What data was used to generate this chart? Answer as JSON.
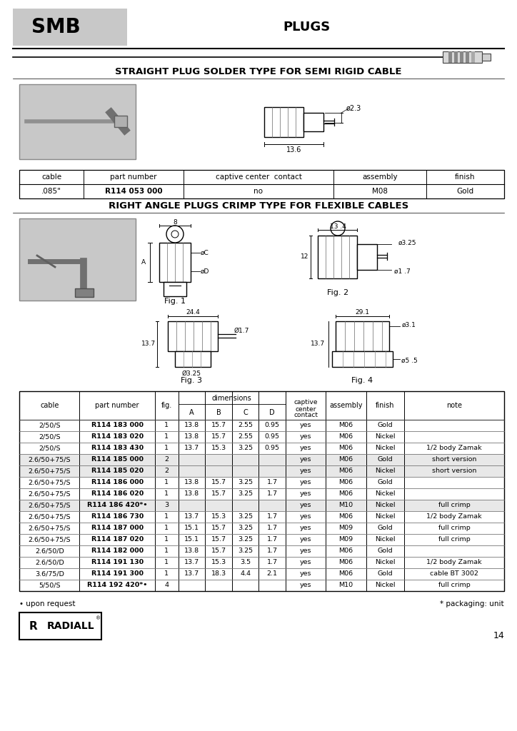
{
  "page_bg": "#ffffff",
  "header_box_color": "#c8c8c8",
  "header_smb_text": "SMB",
  "header_plugs_text": "PLUGS",
  "section1_title": "STRAIGHT PLUG SOLDER TYPE FOR SEMI RIGID CABLE",
  "section2_title": "RIGHT ANGLE PLUGS CRIMP TYPE FOR FLEXIBLE CABLES",
  "table1_headers": [
    "cable",
    "part number",
    "captive center  contact",
    "assembly",
    "finish"
  ],
  "table1_row": [
    ".085\"",
    "R114 053 000",
    "no",
    "M08",
    "Gold"
  ],
  "table2_headers": [
    "cable",
    "part number",
    "fig.",
    "A",
    "B",
    "C",
    "D",
    "captive\ncenter\ncontact",
    "assembly",
    "finish",
    "note"
  ],
  "table2_rows": [
    [
      "2/50/S",
      "R114 183 000",
      "1",
      "13.8",
      "15.7",
      "2.55",
      "0.95",
      "yes",
      "M06",
      "Gold",
      ""
    ],
    [
      "2/50/S",
      "R114 183 020",
      "1",
      "13.8",
      "15.7",
      "2.55",
      "0.95",
      "yes",
      "M06",
      "Nickel",
      ""
    ],
    [
      "2/50/S",
      "R114 183 430",
      "1",
      "13.7",
      "15.3",
      "3.25",
      "0.95",
      "yes",
      "M06",
      "Nickel",
      "1/2 body Zamak"
    ],
    [
      "2.6/50+75/S",
      "R114 185 000",
      "2",
      "",
      "",
      "",
      "",
      "yes",
      "M06",
      "Gold",
      "short version"
    ],
    [
      "2.6/50+75/S",
      "R114 185 020",
      "2",
      "",
      "",
      "",
      "",
      "yes",
      "M06",
      "Nickel",
      "short version"
    ],
    [
      "2.6/50+75/S",
      "R114 186 000",
      "1",
      "13.8",
      "15.7",
      "3.25",
      "1.7",
      "yes",
      "M06",
      "Gold",
      ""
    ],
    [
      "2.6/50+75/S",
      "R114 186 020",
      "1",
      "13.8",
      "15.7",
      "3.25",
      "1.7",
      "yes",
      "M06",
      "Nickel",
      ""
    ],
    [
      "2.6/50+75/S",
      "R114 186 420*•",
      "3",
      "",
      "",
      "",
      "",
      "yes",
      "M10",
      "Nickel",
      "full crimp"
    ],
    [
      "2.6/50+75/S",
      "R114 186 730",
      "1",
      "13.7",
      "15.3",
      "3.25",
      "1.7",
      "yes",
      "M06",
      "Nickel",
      "1/2 body Zamak"
    ],
    [
      "2.6/50+75/S",
      "R114 187 000",
      "1",
      "15.1",
      "15.7",
      "3.25",
      "1.7",
      "yes",
      "M09",
      "Gold",
      "full crimp"
    ],
    [
      "2.6/50+75/S",
      "R114 187 020",
      "1",
      "15.1",
      "15.7",
      "3.25",
      "1.7",
      "yes",
      "M09",
      "Nickel",
      "full crimp"
    ],
    [
      "2.6/50/D",
      "R114 182 000",
      "1",
      "13.8",
      "15.7",
      "3.25",
      "1.7",
      "yes",
      "M06",
      "Gold",
      ""
    ],
    [
      "2.6/50/D",
      "R114 191 130",
      "1",
      "13.7",
      "15.3",
      "3.5",
      "1.7",
      "yes",
      "M06",
      "Nickel",
      "1/2 body Zamak"
    ],
    [
      "3.6/75/D",
      "R114 191 300",
      "1",
      "13.7",
      "18.3",
      "4.4",
      "2.1",
      "yes",
      "M06",
      "Gold",
      "cable BT 3002"
    ],
    [
      "5/50/S",
      "R114 192 420*•",
      "4",
      "",
      "",
      "",
      "",
      "yes",
      "M10",
      "Nickel",
      "full crimp"
    ]
  ],
  "footnote1": "• upon request",
  "footnote2": "* packaging: unit",
  "page_number": "14",
  "gray_row_indices": [
    3,
    4,
    7
  ],
  "gray_row_color": "#e8e8e8",
  "table1_col_widths": [
    90,
    140,
    210,
    130,
    109
  ],
  "table2_col_widths": [
    72,
    90,
    28,
    32,
    32,
    32,
    32,
    48,
    48,
    46,
    119
  ]
}
